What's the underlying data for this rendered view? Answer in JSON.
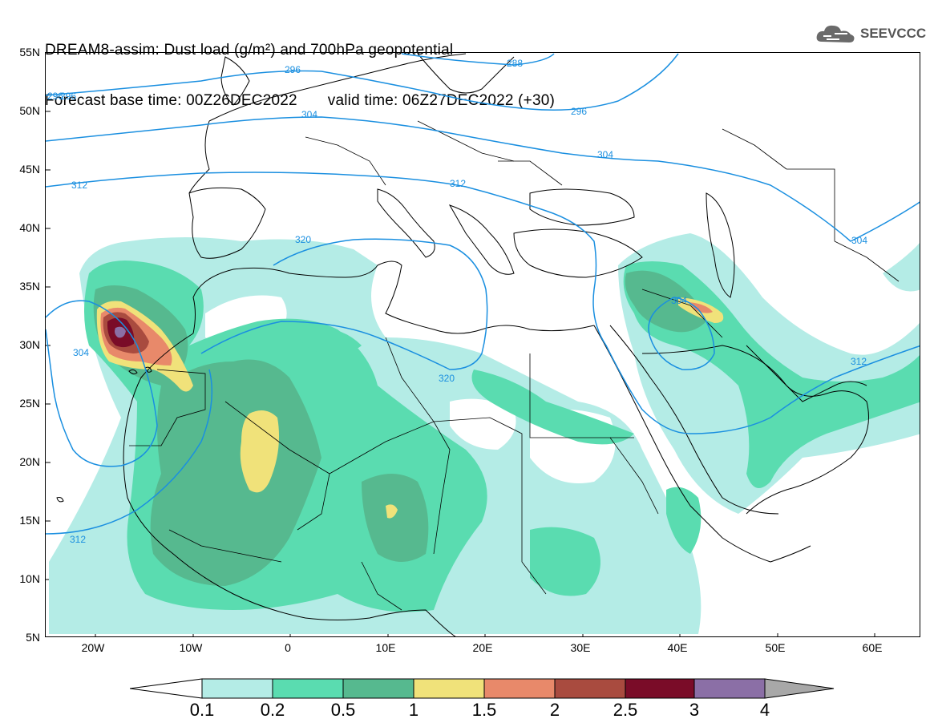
{
  "header": {
    "title_line1": "DREAM8-assim: Dust load (g/m²) and 700hPa geopotential",
    "base_time": "Forecast base time: 00Z26DEC2022",
    "valid_time": "valid time: 06Z27DEC2022 (+30)"
  },
  "logo": {
    "text": "SEEVCCC",
    "icon": "cloud-icon"
  },
  "axes": {
    "lat_labels": [
      "55N",
      "50N",
      "45N",
      "40N",
      "35N",
      "30N",
      "25N",
      "20N",
      "15N",
      "10N",
      "5N"
    ],
    "lon_labels": [
      "20W",
      "10W",
      "0",
      "10E",
      "20E",
      "30E",
      "40E",
      "50E",
      "60E"
    ]
  },
  "contour_labels": [
    "296",
    "296",
    "296",
    "288",
    "304",
    "296",
    "304",
    "312",
    "312",
    "304",
    "320",
    "304",
    "320",
    "312",
    "312"
  ],
  "legend": {
    "labels": [
      "0.1",
      "0.2",
      "0.5",
      "1",
      "1.5",
      "2",
      "2.5",
      "3",
      "4"
    ],
    "colors": [
      "#ffffff",
      "#b4ece6",
      "#5adcb0",
      "#56b98f",
      "#f0e27a",
      "#e8896a",
      "#a94b3f",
      "#7a0c28",
      "#8b6fa6",
      "#a8a8a8"
    ]
  },
  "colors": {
    "contour": "#1a8fe0",
    "level_0_1": "#b4ece6",
    "level_0_2": "#5adcb0",
    "level_0_5": "#56b98f",
    "level_1": "#f0e27a",
    "level_1_5": "#e8896a",
    "level_2": "#a94b3f",
    "level_2_5": "#7a0c28",
    "level_3": "#8b6fa6"
  }
}
